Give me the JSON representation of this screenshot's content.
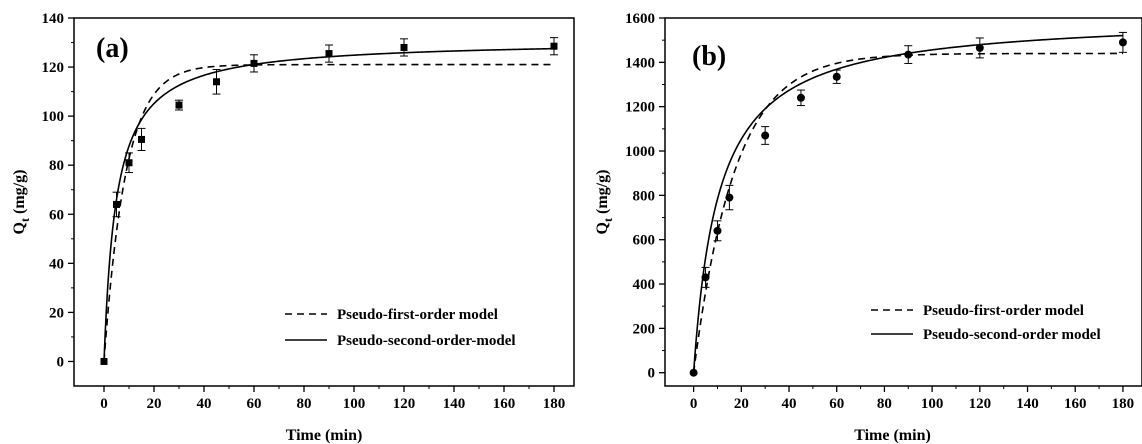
{
  "chart_data": [
    {
      "type": "scatter",
      "panel_label": "(a)",
      "xlabel": "Time (min)",
      "ylabel": "Q",
      "ylabel_sub": "t",
      "ylabel_unit": " (mg/g)",
      "xlim": [
        -12,
        188
      ],
      "ylim": [
        -10,
        140
      ],
      "xticks": [
        0,
        20,
        40,
        60,
        80,
        100,
        120,
        140,
        160,
        180
      ],
      "yticks": [
        0,
        20,
        40,
        60,
        80,
        100,
        120,
        140
      ],
      "marker": "square",
      "legend_position": "bottom-right",
      "experimental": {
        "x": [
          0,
          5,
          10,
          15,
          30,
          45,
          60,
          90,
          120,
          180
        ],
        "y": [
          0,
          64,
          81,
          90.5,
          104.5,
          114,
          121.5,
          125.5,
          128,
          128.5
        ],
        "err": [
          0,
          5,
          4,
          4.5,
          2,
          5,
          3.5,
          3.5,
          3.5,
          3.5
        ]
      },
      "series": [
        {
          "name": "Pseudo-first-order model",
          "style": "dashed",
          "model": "pfo",
          "qe": 121,
          "k": 0.115
        },
        {
          "name": "Pseudo-second-order-model",
          "style": "solid",
          "model": "pso",
          "qe": 131,
          "k": 0.00155
        }
      ],
      "legend_entries": [
        "Pseudo-first-order model",
        "Pseudo-second-order-model"
      ]
    },
    {
      "type": "scatter",
      "panel_label": "(b)",
      "xlabel": "Time (min)",
      "ylabel": "Q",
      "ylabel_sub": "t",
      "ylabel_unit": " (mg/g)",
      "xlim": [
        -12,
        188
      ],
      "ylim": [
        -60,
        1600
      ],
      "xticks": [
        0,
        20,
        40,
        60,
        80,
        100,
        120,
        140,
        160,
        180
      ],
      "yticks": [
        0,
        200,
        400,
        600,
        800,
        1000,
        1200,
        1400,
        1600
      ],
      "marker": "circle",
      "legend_position": "bottom-right",
      "experimental": {
        "x": [
          0,
          5,
          10,
          15,
          30,
          45,
          60,
          90,
          120,
          180
        ],
        "y": [
          0,
          430,
          640,
          790,
          1070,
          1240,
          1335,
          1435,
          1465,
          1490
        ],
        "err": [
          0,
          45,
          45,
          55,
          40,
          35,
          30,
          40,
          45,
          45
        ]
      },
      "series": [
        {
          "name": "Pseudo-first-order model",
          "style": "dashed",
          "model": "pfo",
          "qe": 1440,
          "k": 0.058
        },
        {
          "name": "Pseudo-second-order model",
          "style": "solid",
          "model": "pso",
          "qe": 1610,
          "k": 5.88e-05
        }
      ],
      "legend_entries": [
        "Pseudo-first-order model",
        "Pseudo-second-order model"
      ]
    }
  ]
}
